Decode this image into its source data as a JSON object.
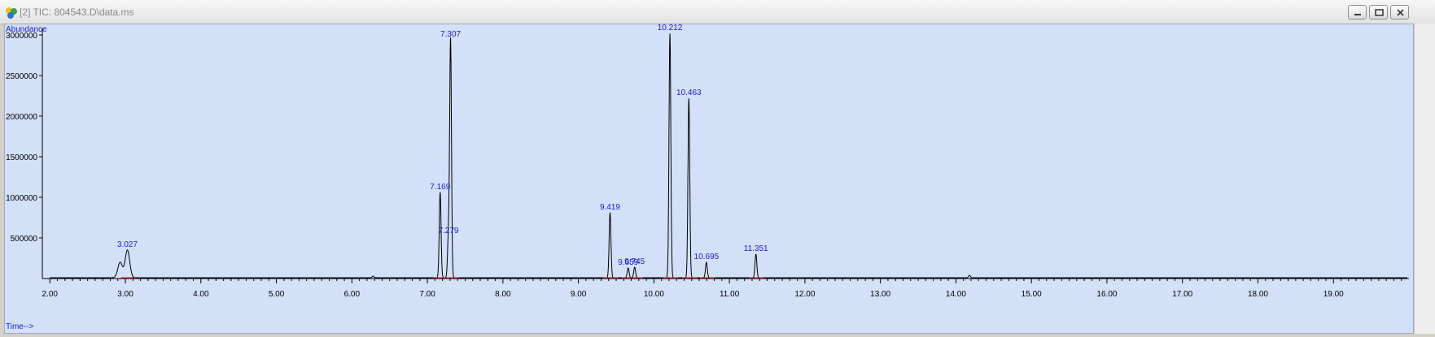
{
  "window": {
    "title": "[2] TIC: 804543.D\\data.ms",
    "controls": [
      "minimize-icon",
      "restore-icon",
      "close-icon"
    ]
  },
  "chart_data": {
    "type": "line",
    "title": "",
    "xlabel": "Time-->",
    "ylabel": "Abundance",
    "xlim": [
      1.9,
      20.0
    ],
    "ylim": [
      0,
      3000000
    ],
    "x_ticks": [
      2.0,
      3.0,
      4.0,
      5.0,
      6.0,
      7.0,
      8.0,
      9.0,
      10.0,
      11.0,
      12.0,
      13.0,
      14.0,
      15.0,
      16.0,
      17.0,
      18.0,
      19.0
    ],
    "x_tick_labels": [
      "2.00",
      "3.00",
      "4.00",
      "5.00",
      "6.00",
      "7.00",
      "8.00",
      "9.00",
      "10.00",
      "11.00",
      "12.00",
      "13.00",
      "14.00",
      "15.00",
      "16.00",
      "17.00",
      "18.00",
      "19.00"
    ],
    "y_ticks": [
      500000,
      1000000,
      1500000,
      2000000,
      2500000,
      3000000
    ],
    "y_tick_labels": [
      "500000",
      "1000000",
      "1500000",
      "2000000",
      "2500000",
      "3000000"
    ],
    "grid": false,
    "colors": {
      "background": "#d2e0f8",
      "trace": "#000000",
      "peak_label": "#1c1ccc",
      "integration": "#e0202a",
      "axis_label": "#1c1ccc"
    },
    "baseline": 10000,
    "peaks": [
      {
        "label": "3.027",
        "rt": 3.027,
        "height": 350000
      },
      {
        "label": "7.169",
        "rt": 7.169,
        "height": 1060000
      },
      {
        "label": "7.279",
        "rt": 7.279,
        "height": 520000
      },
      {
        "label": "7.307",
        "rt": 7.307,
        "height": 2940000
      },
      {
        "label": "9.419",
        "rt": 9.419,
        "height": 810000
      },
      {
        "label": "9.659",
        "rt": 9.659,
        "height": 130000
      },
      {
        "label": "9.745",
        "rt": 9.745,
        "height": 140000
      },
      {
        "label": "10.212",
        "rt": 10.212,
        "height": 3020000
      },
      {
        "label": "10.463",
        "rt": 10.463,
        "height": 2220000
      },
      {
        "label": "10.695",
        "rt": 10.695,
        "height": 200000
      },
      {
        "label": "11.351",
        "rt": 11.351,
        "height": 300000
      }
    ],
    "minor_peaks": [
      {
        "rt": 2.93,
        "height": 200000
      },
      {
        "rt": 6.28,
        "height": 30000
      },
      {
        "rt": 14.18,
        "height": 40000
      }
    ]
  }
}
